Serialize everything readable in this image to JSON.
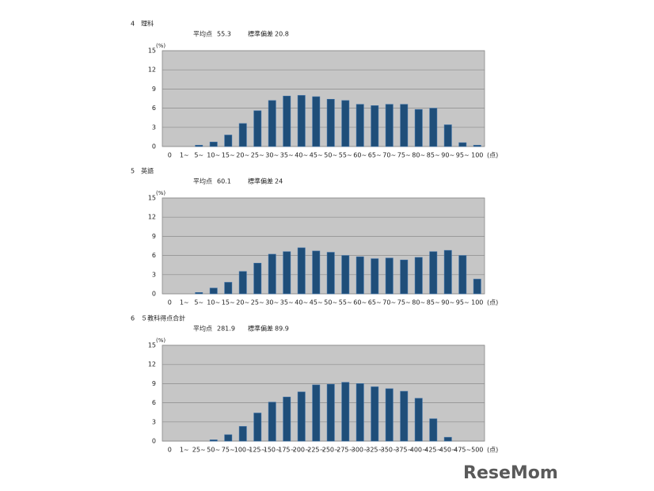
{
  "chart_data": [
    {
      "type": "bar",
      "title": "4　理科",
      "mean_label": "平均点",
      "mean": 55.3,
      "sd_label": "標準偏差",
      "sd": 20.8,
      "y_label": "(%)",
      "x_label": "(点)",
      "categories": [
        "0",
        "1~",
        "5~",
        "10~",
        "15~",
        "20~",
        "25~",
        "30~",
        "35~",
        "40~",
        "45~",
        "50~",
        "55~",
        "60~",
        "65~",
        "70~",
        "75~",
        "80~",
        "85~",
        "90~",
        "95~",
        "100"
      ],
      "values": [
        0,
        0,
        0.2,
        0.7,
        1.8,
        3.6,
        5.6,
        7.2,
        7.9,
        8.0,
        7.8,
        7.4,
        7.2,
        6.6,
        6.4,
        6.6,
        6.6,
        5.8,
        6.0,
        3.4,
        0.6,
        0.2
      ],
      "color": "#1f4e79",
      "background": "#c6c6c6",
      "ylim": [
        0,
        15
      ],
      "yticks": [
        0,
        3,
        6,
        9,
        12,
        15
      ],
      "grid": true
    },
    {
      "type": "bar",
      "title": "5　英語",
      "mean_label": "平均点",
      "mean": 60.1,
      "sd_label": "標準偏差",
      "sd": 24,
      "y_label": "(%)",
      "x_label": "(点)",
      "categories": [
        "0",
        "1~",
        "5~",
        "10~",
        "15~",
        "20~",
        "25~",
        "30~",
        "35~",
        "40~",
        "45~",
        "50~",
        "55~",
        "60~",
        "65~",
        "70~",
        "75~",
        "80~",
        "85~",
        "90~",
        "95~",
        "100"
      ],
      "values": [
        0,
        0,
        0.2,
        0.9,
        1.8,
        3.5,
        4.8,
        6.2,
        6.6,
        7.2,
        6.7,
        6.5,
        6.0,
        5.8,
        5.5,
        5.6,
        5.3,
        5.7,
        6.6,
        6.8,
        6.0,
        2.3
      ],
      "color": "#1f4e79",
      "background": "#c6c6c6",
      "ylim": [
        0,
        15
      ],
      "yticks": [
        0,
        3,
        6,
        9,
        12,
        15
      ],
      "grid": true
    },
    {
      "type": "bar",
      "title": "6　５教科得点合計",
      "mean_label": "平均点",
      "mean": 281.9,
      "sd_label": "標準偏差",
      "sd": 89.9,
      "y_label": "(%)",
      "x_label": "(点)",
      "categories": [
        "0",
        "1~",
        "25~",
        "50~",
        "75~",
        "100~",
        "125~",
        "150~",
        "175~",
        "200~",
        "225~",
        "250~",
        "275~",
        "300~",
        "325~",
        "350~",
        "375~",
        "400~",
        "425~",
        "450~",
        "475~",
        "500"
      ],
      "values": [
        0,
        0,
        0,
        0.2,
        1.0,
        2.3,
        4.4,
        6.1,
        6.9,
        7.7,
        8.8,
        8.9,
        9.2,
        9.0,
        8.5,
        8.2,
        7.8,
        6.7,
        3.5,
        0.6,
        0,
        0
      ],
      "color": "#1f4e79",
      "background": "#c6c6c6",
      "ylim": [
        0,
        15
      ],
      "yticks": [
        0,
        3,
        6,
        9,
        12,
        15
      ],
      "grid": true
    }
  ],
  "watermark": "ReseMom"
}
